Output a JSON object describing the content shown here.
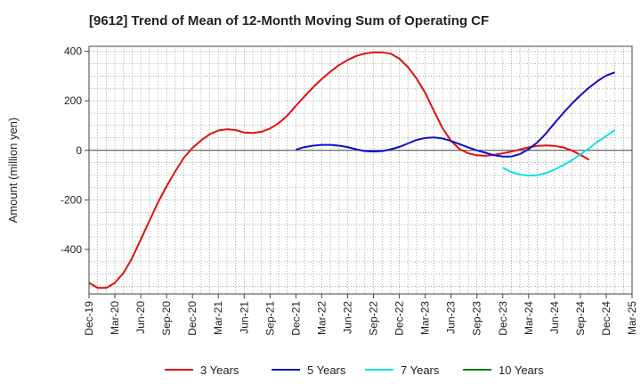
{
  "chart_data": {
    "type": "line",
    "title": "[9612]  Trend of Mean of 12-Month Moving Sum of Operating CF",
    "xlabel": "",
    "ylabel": "Amount (million yen)",
    "ylim": [
      -580,
      420
    ],
    "yticks": [
      400,
      200,
      0,
      -200,
      -400
    ],
    "ytick_labels": [
      "400",
      "200",
      "0",
      "-200",
      "-400"
    ],
    "x_start": "2019-12",
    "x_end": "2025-03",
    "xtick_labels": [
      "Dec-19",
      "Mar-20",
      "Jun-20",
      "Sep-20",
      "Dec-20",
      "Mar-21",
      "Jun-21",
      "Sep-21",
      "Dec-21",
      "Mar-22",
      "Jun-22",
      "Sep-22",
      "Dec-22",
      "Mar-23",
      "Jun-23",
      "Sep-23",
      "Dec-23",
      "Mar-24",
      "Jun-24",
      "Sep-24",
      "Dec-24",
      "Mar-25"
    ],
    "grid": true,
    "legend_position": "bottom",
    "series": [
      {
        "name": "3 Years",
        "color": "#e01010",
        "start_month_index": 0,
        "values": [
          -535,
          -555,
          -555,
          -535,
          -495,
          -435,
          -360,
          -285,
          -210,
          -145,
          -85,
          -30,
          10,
          40,
          65,
          80,
          85,
          82,
          72,
          70,
          75,
          88,
          110,
          140,
          180,
          218,
          255,
          288,
          318,
          344,
          365,
          381,
          391,
          396,
          396,
          390,
          370,
          336,
          290,
          232,
          160,
          90,
          38,
          5,
          -12,
          -20,
          -22,
          -18,
          -12,
          -5,
          3,
          12,
          18,
          20,
          18,
          12,
          0,
          -18,
          -38
        ]
      },
      {
        "name": "5 Years",
        "color": "#1010c8",
        "start_month_index": 24,
        "values": [
          3,
          13,
          19,
          22,
          22,
          19,
          13,
          4,
          -3,
          -5,
          -3,
          4,
          14,
          28,
          42,
          50,
          52,
          48,
          38,
          25,
          12,
          0,
          -10,
          -20,
          -25,
          -25,
          -15,
          5,
          32,
          68,
          110,
          150,
          188,
          222,
          253,
          280,
          302,
          315
        ]
      },
      {
        "name": "7 Years",
        "color": "#10e0e8",
        "start_month_index": 48,
        "values": [
          -70,
          -88,
          -98,
          -102,
          -100,
          -92,
          -78,
          -60,
          -40,
          -16,
          8,
          35,
          58,
          82
        ]
      },
      {
        "name": "10 Years",
        "color": "#108010",
        "start_month_index": 0,
        "values": []
      }
    ]
  }
}
